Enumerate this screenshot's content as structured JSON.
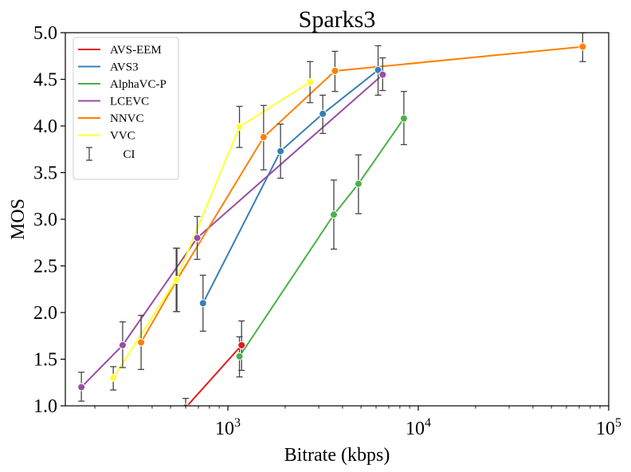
{
  "chart_data": {
    "type": "line",
    "title": "Sparks3",
    "xlabel": "Bitrate (kbps)",
    "ylabel": "MOS",
    "xscale": "log",
    "xlim": [
      140,
      100000
    ],
    "ylim": [
      1.0,
      5.0
    ],
    "yticks": [
      "1.0",
      "1.5",
      "2.0",
      "2.5",
      "3.0",
      "3.5",
      "4.0",
      "4.5",
      "5.0"
    ],
    "xticks": [
      {
        "value": 1000,
        "base": "10",
        "exp": "3"
      },
      {
        "value": 10000,
        "base": "10",
        "exp": "4"
      },
      {
        "value": 100000,
        "base": "10",
        "exp": "5"
      }
    ],
    "grid": false,
    "legend_position": "upper-left",
    "ci_label": "CI",
    "series": [
      {
        "name": "AVS-EEM",
        "color": "#e41a1c",
        "x": [
          600,
          1180
        ],
        "y": [
          0.98,
          1.65
        ],
        "ci_low": [
          0.9,
          1.38
        ],
        "ci_high": [
          1.08,
          1.91
        ]
      },
      {
        "name": "AVS3",
        "color": "#377eb8",
        "x": [
          740,
          1890,
          3150,
          6150
        ],
        "y": [
          2.1,
          3.73,
          4.13,
          4.6
        ],
        "ci_low": [
          1.8,
          3.44,
          3.92,
          4.33
        ],
        "ci_high": [
          2.4,
          4.02,
          4.33,
          4.86
        ]
      },
      {
        "name": "AlphaVC-P",
        "color": "#4daf4a",
        "x": [
          1150,
          3600,
          4850,
          8400
        ],
        "y": [
          1.53,
          3.05,
          3.38,
          4.08
        ],
        "ci_low": [
          1.31,
          2.68,
          3.06,
          3.8
        ],
        "ci_high": [
          1.74,
          3.42,
          3.69,
          4.37
        ]
      },
      {
        "name": "LCEVC",
        "color": "#984ea3",
        "x": [
          170,
          280,
          690,
          6500
        ],
        "y": [
          1.2,
          1.65,
          2.8,
          4.55
        ],
        "ci_low": [
          1.05,
          1.41,
          2.57,
          4.38
        ],
        "ci_high": [
          1.36,
          1.9,
          3.03,
          4.73
        ]
      },
      {
        "name": "NNVC",
        "color": "#ff7f00",
        "x": [
          350,
          540,
          1540,
          3650,
          73000
        ],
        "y": [
          1.68,
          2.35,
          3.88,
          4.59,
          4.85
        ],
        "ci_low": [
          1.39,
          2.01,
          3.53,
          4.37,
          4.69
        ],
        "ci_high": [
          1.97,
          2.69,
          4.22,
          4.8,
          5.0
        ]
      },
      {
        "name": "VVC",
        "color": "#ffff33",
        "x": [
          250,
          535,
          1150,
          2700
        ],
        "y": [
          1.3,
          2.35,
          3.99,
          4.47
        ],
        "ci_low": [
          1.17,
          2.01,
          3.77,
          4.25
        ],
        "ci_high": [
          1.42,
          2.69,
          4.21,
          4.69
        ]
      }
    ]
  }
}
